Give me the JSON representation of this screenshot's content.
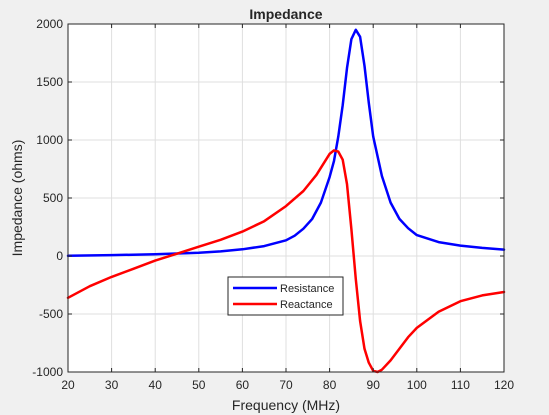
{
  "chart_data": {
    "type": "line",
    "title": "Impedance",
    "xlabel": "Frequency (MHz)",
    "ylabel": "Impedance (ohms)",
    "xlim": [
      20,
      120
    ],
    "ylim": [
      -1000,
      2000
    ],
    "xticks": [
      20,
      30,
      40,
      50,
      60,
      70,
      80,
      90,
      100,
      110,
      120
    ],
    "yticks": [
      -1000,
      -500,
      0,
      500,
      1000,
      1500,
      2000
    ],
    "grid": true,
    "legend_position": "lower-center",
    "series": [
      {
        "name": "Resistance",
        "color": "#0000ff",
        "x": [
          20,
          30,
          40,
          50,
          55,
          60,
          65,
          70,
          72,
          74,
          76,
          78,
          80,
          81,
          82,
          83,
          84,
          85,
          86,
          87,
          88,
          89,
          90,
          92,
          94,
          96,
          98,
          100,
          105,
          110,
          115,
          120
        ],
        "y": [
          2,
          8,
          15,
          28,
          40,
          58,
          85,
          135,
          175,
          235,
          320,
          460,
          680,
          820,
          1030,
          1300,
          1620,
          1870,
          1950,
          1890,
          1640,
          1320,
          1030,
          690,
          460,
          320,
          240,
          180,
          120,
          90,
          70,
          55
        ]
      },
      {
        "name": "Reactance",
        "color": "#ff0000",
        "x": [
          20,
          25,
          30,
          35,
          40,
          45,
          50,
          55,
          60,
          65,
          70,
          74,
          77,
          79,
          80,
          81,
          82,
          83,
          84,
          85,
          86,
          87,
          88,
          89,
          90,
          91,
          92,
          94,
          96,
          98,
          100,
          105,
          110,
          115,
          120
        ],
        "y": [
          -360,
          -260,
          -180,
          -110,
          -40,
          20,
          80,
          140,
          210,
          300,
          430,
          560,
          700,
          820,
          880,
          910,
          900,
          830,
          620,
          230,
          -200,
          -560,
          -800,
          -920,
          -990,
          -1000,
          -980,
          -900,
          -800,
          -700,
          -620,
          -480,
          -390,
          -340,
          -310
        ]
      }
    ]
  }
}
